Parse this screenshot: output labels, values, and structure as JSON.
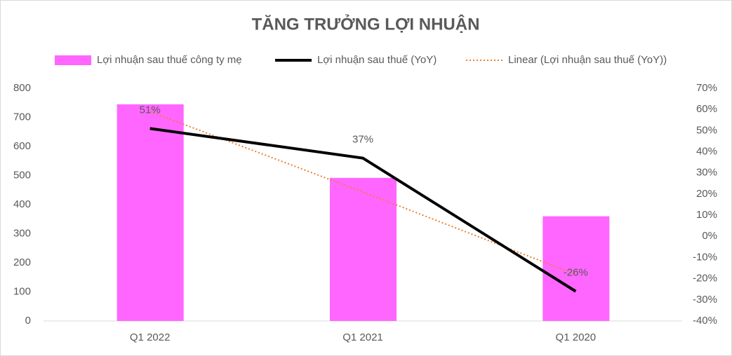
{
  "chart_data": {
    "type": "bar-line",
    "title": "TĂNG TRƯỞNG LỢI NHUẬN",
    "categories": [
      "Q1 2022",
      "Q1 2021",
      "Q1 2020"
    ],
    "series": [
      {
        "name": "Lợi nhuận sau thuế công ty mẹ",
        "type": "bar",
        "color": "#ff66ff",
        "values": [
          745,
          492,
          360
        ]
      },
      {
        "name": "Lợi nhuận sau thuế (YoY)",
        "type": "line",
        "axis": "y2",
        "color": "#000000",
        "values": [
          51,
          37,
          -26
        ],
        "value_labels": [
          "51%",
          "37%",
          "-26%"
        ]
      },
      {
        "name": "Linear (Lợi nhuận sau thuế (YoY))",
        "type": "trendline",
        "axis": "y2",
        "color": "#ed7d31",
        "values": [
          59,
          21,
          -18
        ]
      }
    ],
    "ylim": [
      0,
      800
    ],
    "yticks": [
      0,
      100,
      200,
      300,
      400,
      500,
      600,
      700,
      800
    ],
    "y2lim": [
      -40,
      70
    ],
    "y2ticks": [
      {
        "value": -40,
        "label": "-40%"
      },
      {
        "value": -30,
        "label": "-30%"
      },
      {
        "value": -20,
        "label": "-20%"
      },
      {
        "value": -10,
        "label": "-10%"
      },
      {
        "value": 0,
        "label": "0%"
      },
      {
        "value": 10,
        "label": "10%"
      },
      {
        "value": 20,
        "label": "20%"
      },
      {
        "value": 30,
        "label": "30%"
      },
      {
        "value": 40,
        "label": "40%"
      },
      {
        "value": 50,
        "label": "50%"
      },
      {
        "value": 60,
        "label": "60%"
      },
      {
        "value": 70,
        "label": "70%"
      }
    ],
    "grid": false,
    "legend": "top"
  }
}
